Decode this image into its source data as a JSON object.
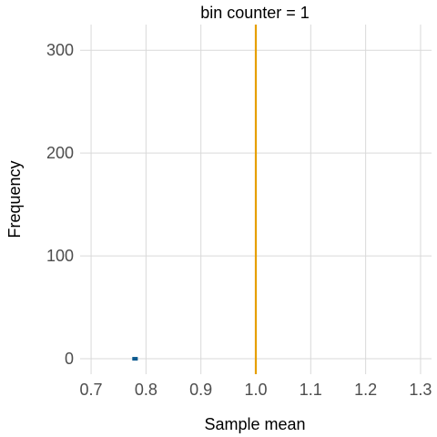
{
  "chart_data": {
    "type": "bar",
    "title": "bin counter = 1",
    "xlabel": "Sample mean",
    "ylabel": "Frequency",
    "xlim": [
      0.68,
      1.32
    ],
    "ylim": [
      -15,
      325
    ],
    "x_ticks": [
      "0.7",
      "0.8",
      "0.9",
      "1.0",
      "1.1",
      "1.2",
      "1.3"
    ],
    "x_tick_values": [
      0.7,
      0.8,
      0.9,
      1.0,
      1.1,
      1.2,
      1.3
    ],
    "y_ticks": [
      "0",
      "100",
      "200",
      "300"
    ],
    "y_tick_values": [
      0,
      100,
      200,
      300
    ],
    "grid": true,
    "bins": [
      {
        "x_start": 0.775,
        "x_end": 0.785,
        "count": 1
      }
    ],
    "reference_line": {
      "x": 1.0,
      "color": "#e69f00"
    },
    "bar_color": "#0c5a8f"
  }
}
